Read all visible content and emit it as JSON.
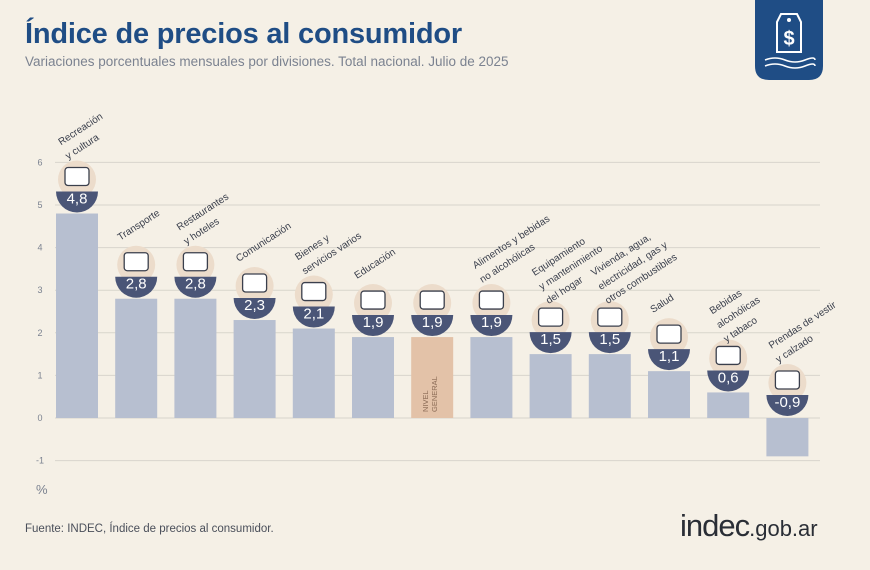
{
  "header": {
    "title": "Índice de precios al consumidor",
    "subtitle": "Variaciones porcentuales mensuales por divisiones. Total nacional. Julio de 2025"
  },
  "footer": {
    "source": "Fuente: INDEC, Índice de precios al consumidor.",
    "logo_main": "indec",
    "logo_suffix": ".gob.ar"
  },
  "colors": {
    "bar": "#b7bfd0",
    "highlight_bar": "#e3c2a8",
    "badge": "#4a5577",
    "title": "#1f4d85",
    "grid": "#d8d5cc",
    "background": "#f5f0e6"
  },
  "chart_data": {
    "type": "bar",
    "title": "Índice de precios al consumidor",
    "subtitle": "Variaciones porcentuales mensuales por divisiones. Total nacional. Julio de 2025",
    "ylabel": "%",
    "ylim": [
      -1,
      6
    ],
    "yticks": [
      "-1",
      "0",
      "1",
      "2",
      "3",
      "4",
      "5",
      "6"
    ],
    "grid": true,
    "categories": [
      "Recreación y cultura",
      "Transporte",
      "Restaurantes y hoteles",
      "Comunicación",
      "Bienes y servicios varios",
      "Educación",
      "Nivel general",
      "Alimentos y bebidas no alcohólicas",
      "Equipamiento y mantenimiento del hogar",
      "Vivienda, agua, electricidad, gas y otros combustibles",
      "Salud",
      "Bebidas alcohólicas y tabaco",
      "Prendas de vestir y calzado"
    ],
    "category_label_lines": [
      [
        "Recreación",
        "y cultura"
      ],
      [
        "Transporte"
      ],
      [
        "Restaurantes",
        "y hoteles"
      ],
      [
        "Comunicación"
      ],
      [
        "Bienes y",
        "servicios varios"
      ],
      [
        "Educación"
      ],
      [
        "NIVEL",
        "GENERAL"
      ],
      [
        "Alimentos y bebidas",
        "no alcohólicas"
      ],
      [
        "Equipamiento",
        "y mantenimiento",
        "del hogar"
      ],
      [
        "Vivienda, agua,",
        "electricidad, gas y",
        "otros combustibles"
      ],
      [
        "Salud"
      ],
      [
        "Bebidas",
        "alcohólicas",
        "y tabaco"
      ],
      [
        "Prendas de vestir",
        "y calzado"
      ]
    ],
    "values": [
      4.8,
      2.8,
      2.8,
      2.3,
      2.1,
      1.9,
      1.9,
      1.9,
      1.5,
      1.5,
      1.1,
      0.6,
      -0.9
    ],
    "value_labels": [
      "4,8",
      "2,8",
      "2,8",
      "2,3",
      "2,1",
      "1,9",
      "1,9",
      "1,9",
      "1,5",
      "1,5",
      "1,1",
      "0,6",
      "-0,9"
    ],
    "icons": [
      "sun-umbrella-icon",
      "bus-sube-card-icon",
      "plate-cutlery-icon",
      "smartphone-icon",
      "comb-razor-icon",
      "notebook-pencil-icon",
      "grocery-basket-icon",
      "food-bread-eggs-icon",
      "air-conditioner-icon",
      "lightbulb-tools-icon",
      "first-aid-kit-icon",
      "wine-bottle-glass-icon",
      "tshirt-shoe-icon"
    ],
    "highlight_index": 6
  }
}
